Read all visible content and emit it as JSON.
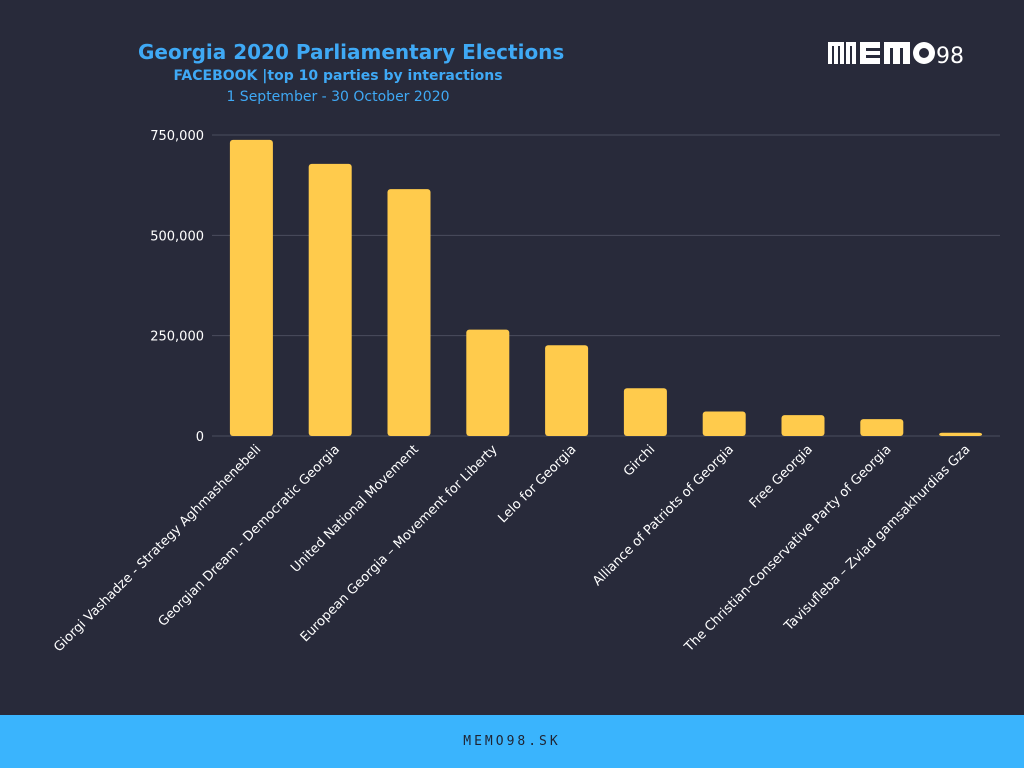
{
  "header": {
    "title": "Georgia 2020 Parliamentary Elections",
    "subtitle": "FACEBOOK |top 10 parties by interactions",
    "date_range": "1 September - 30 October 2020",
    "logo_text": "MEMO98"
  },
  "footer": {
    "text": "MEMO98.SK"
  },
  "colors": {
    "background": "#282a3a",
    "bar": "#ffcb4c",
    "title": "#3fa9f5",
    "footer_bg": "#3ab4fd",
    "grid": "#4a4d5e"
  },
  "chart_data": {
    "type": "bar",
    "categories": [
      "Giorgi Vashadze - Strategy Aghmashenebeli",
      "Georgian Dream - Democratic Georgia",
      "United National Movement",
      "European Georgia – Movement for Liberty",
      "Lelo for Georgia",
      "Girchi",
      "Alliance of Patriots of Georgia",
      "Free Georgia",
      "The Christian-Conservative Party of Georgia",
      "Tavisufleba – Zviad gamsakhurdias Gza"
    ],
    "values": [
      738000,
      678000,
      615000,
      265000,
      226000,
      119000,
      61000,
      52000,
      42000,
      8000
    ],
    "ylim": [
      0,
      750000
    ],
    "yticks": [
      0,
      250000,
      500000,
      750000
    ],
    "ytick_labels": [
      "0",
      "250,000",
      "500,000",
      "750,000"
    ],
    "grid": true,
    "legend": "none",
    "xlabel": "",
    "ylabel": ""
  }
}
